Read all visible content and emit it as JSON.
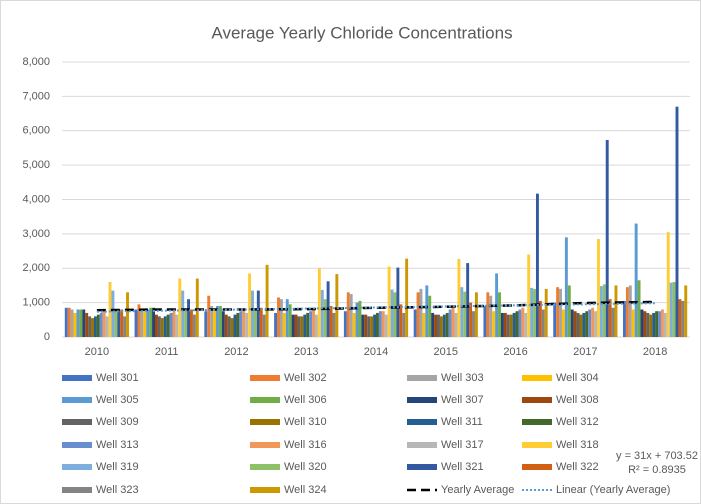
{
  "chart_data": {
    "type": "bar",
    "title": "Average Yearly Chloride Concentrations",
    "categories": [
      "2010",
      "2011",
      "2012",
      "2013",
      "2014",
      "2015",
      "2016",
      "2017",
      "2018"
    ],
    "ylim": [
      0,
      8000
    ],
    "yticks": [
      0,
      {
        "value": 1000,
        "label": "1,000"
      },
      {
        "value": 2000,
        "label": "2,000"
      },
      {
        "value": 3000,
        "label": "3,000"
      },
      {
        "value": 4000,
        "label": "4,000"
      },
      {
        "value": 5000,
        "label": "5,000"
      },
      {
        "value": 6000,
        "label": "6,000"
      },
      {
        "value": 7000,
        "label": "7,000"
      },
      {
        "value": 8000,
        "label": "8,000"
      }
    ],
    "grid": true,
    "annotations": [
      "y = 31x + 703.52",
      "R² = 0.8935"
    ],
    "series": [
      {
        "name": "Well 301",
        "color": "#4472c4",
        "values": [
          850,
          800,
          750,
          700,
          750,
          800,
          900,
          1000,
          1050
        ]
      },
      {
        "name": "Well 302",
        "color": "#ed7d31",
        "values": [
          850,
          950,
          1200,
          1150,
          1300,
          1300,
          1300,
          1450,
          1450
        ]
      },
      {
        "name": "Well 303",
        "color": "#a5a5a5",
        "values": [
          800,
          800,
          900,
          1100,
          1250,
          1400,
          1200,
          1400,
          1500
        ]
      },
      {
        "name": "Well 304",
        "color": "#ffc000",
        "values": [
          700,
          750,
          800,
          700,
          700,
          700,
          750,
          800,
          800
        ]
      },
      {
        "name": "Well 305",
        "color": "#5b9bd5",
        "values": [
          800,
          800,
          900,
          1100,
          1000,
          1500,
          1850,
          2900,
          3300
        ]
      },
      {
        "name": "Well 306",
        "color": "#70ad47",
        "values": [
          800,
          850,
          900,
          950,
          1050,
          1200,
          1300,
          1500,
          1650
        ]
      },
      {
        "name": "Well 307",
        "color": "#264478",
        "values": [
          800,
          850,
          750,
          650,
          650,
          700,
          700,
          800,
          800
        ]
      },
      {
        "name": "Well 308",
        "color": "#9e480e",
        "values": [
          700,
          650,
          650,
          650,
          650,
          650,
          700,
          750,
          750
        ]
      },
      {
        "name": "Well 309",
        "color": "#636363",
        "values": [
          600,
          600,
          600,
          600,
          600,
          650,
          650,
          700,
          700
        ]
      },
      {
        "name": "Well 310",
        "color": "#997300",
        "values": [
          550,
          550,
          550,
          600,
          600,
          600,
          650,
          650,
          650
        ]
      },
      {
        "name": "Well 311",
        "color": "#255e91",
        "values": [
          600,
          600,
          650,
          650,
          650,
          650,
          700,
          700,
          700
        ]
      },
      {
        "name": "Well 312",
        "color": "#43682b",
        "values": [
          650,
          650,
          700,
          700,
          700,
          700,
          750,
          750,
          750
        ]
      },
      {
        "name": "Well 313",
        "color": "#698ed0",
        "values": [
          700,
          700,
          750,
          750,
          750,
          800,
          800,
          800,
          750
        ]
      },
      {
        "name": "Well 316",
        "color": "#f1975a",
        "values": [
          750,
          750,
          800,
          800,
          750,
          850,
          850,
          850,
          800
        ]
      },
      {
        "name": "Well 317",
        "color": "#b7b7b7",
        "values": [
          600,
          650,
          700,
          650,
          650,
          700,
          700,
          750,
          700
        ]
      },
      {
        "name": "Well 318",
        "color": "#ffcd33",
        "values": [
          1600,
          1700,
          1850,
          2000,
          2050,
          2270,
          2400,
          2850,
          3050
        ]
      },
      {
        "name": "Well 319",
        "color": "#7cafdd",
        "values": [
          1350,
          1350,
          1350,
          1370,
          1380,
          1450,
          1430,
          1480,
          1580
        ]
      },
      {
        "name": "Well 320",
        "color": "#8cc168",
        "values": [
          800,
          800,
          800,
          1100,
          1300,
          1320,
          1400,
          1530,
          1600
        ]
      },
      {
        "name": "Well 321",
        "color": "#335aa1",
        "values": [
          750,
          1100,
          1350,
          1620,
          2020,
          2150,
          4170,
          5730,
          6700
        ]
      },
      {
        "name": "Well 322",
        "color": "#d26012",
        "values": [
          800,
          800,
          850,
          900,
          950,
          1000,
          1050,
          1100,
          1100
        ]
      },
      {
        "name": "Well 323",
        "color": "#848484",
        "values": [
          600,
          650,
          650,
          700,
          700,
          750,
          800,
          850,
          1050
        ]
      },
      {
        "name": "Well 324",
        "color": "#cc9a00",
        "values": [
          1300,
          1700,
          2100,
          1830,
          2280,
          1300,
          1400,
          1500,
          1500
        ]
      },
      {
        "name": "Yearly Average",
        "color": "#000000",
        "type": "line",
        "dash": "dashed",
        "values": [
          780,
          800,
          800,
          810,
          850,
          880,
          920,
          990,
          1020
        ]
      },
      {
        "name": "Linear (Yearly Average)",
        "color": "#5b9bd5",
        "type": "line",
        "dash": "dotted",
        "values": [
          735,
          766,
          797,
          828,
          859,
          890,
          921,
          952,
          983
        ]
      }
    ]
  }
}
